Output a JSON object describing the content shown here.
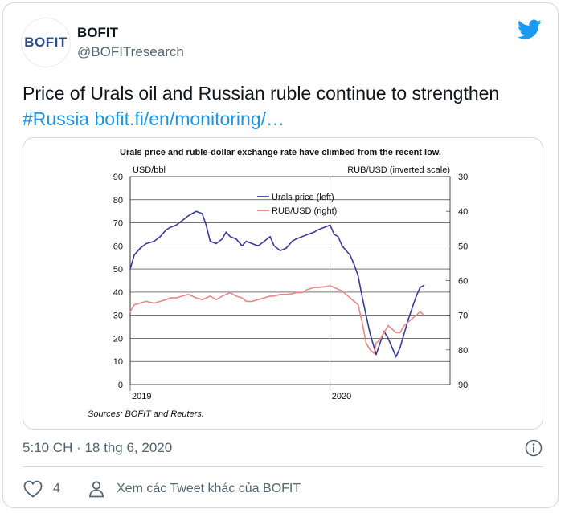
{
  "tweet": {
    "avatar_text": "BOFIT",
    "display_name": "BOFIT",
    "handle": "@BOFITresearch",
    "text_main": "Price of Urals oil and Russian ruble continue to strengthen",
    "hashtag": "#Russia",
    "link": "bofit.fi/en/monitoring/…",
    "timestamp": "5:10 CH · 18 thg 6, 2020",
    "like_count": "4",
    "more_tweets": "Xem các Tweet khác của BOFIT",
    "brand_icon": "twitter-bird-icon",
    "colors": {
      "link": "#1b95e0",
      "brand": "#1d9bf0",
      "muted": "#536471"
    }
  },
  "chart_data": {
    "type": "line",
    "title": "Urals price and ruble-dollar exchange rate have climbed from the recent low.",
    "left_axis_label": "USD/bbl",
    "right_axis_label": "RUB/USD (inverted scale)",
    "left_ticks": [
      "0",
      "10",
      "20",
      "30",
      "40",
      "50",
      "60",
      "70",
      "80",
      "90"
    ],
    "right_ticks": [
      "30",
      "40",
      "50",
      "60",
      "70",
      "80",
      "90"
    ],
    "x_tick_labels": [
      "2019",
      "2020"
    ],
    "left_ylim": [
      0,
      90
    ],
    "right_ylim_inverted": [
      90,
      30
    ],
    "xlim": [
      2019.0,
      2020.6
    ],
    "grid": true,
    "legend_position": "top-center",
    "source_note": "Sources: BOFIT and Reuters.",
    "series": [
      {
        "name": "Urals price (left)",
        "axis": "left",
        "color": "#3b3b9a",
        "x": [
          2019.0,
          2019.02,
          2019.05,
          2019.08,
          2019.12,
          2019.15,
          2019.18,
          2019.2,
          2019.23,
          2019.26,
          2019.29,
          2019.31,
          2019.33,
          2019.36,
          2019.38,
          2019.4,
          2019.43,
          2019.46,
          2019.48,
          2019.5,
          2019.53,
          2019.56,
          2019.58,
          2019.61,
          2019.64,
          2019.67,
          2019.7,
          2019.72,
          2019.75,
          2019.78,
          2019.81,
          2019.83,
          2019.86,
          2019.89,
          2019.92,
          2019.94,
          2019.97,
          2020.0,
          2020.02,
          2020.04,
          2020.06,
          2020.08,
          2020.1,
          2020.12,
          2020.14,
          2020.16,
          2020.18,
          2020.2,
          2020.22,
          2020.23,
          2020.25,
          2020.27,
          2020.29,
          2020.31,
          2020.33,
          2020.35,
          2020.37,
          2020.39,
          2020.41,
          2020.43,
          2020.45,
          2020.47
        ],
        "y": [
          50,
          56,
          59,
          61,
          62,
          64,
          67,
          68,
          69,
          71,
          73,
          74,
          75,
          74,
          69,
          62,
          61,
          63,
          66,
          64,
          63,
          60,
          62,
          61,
          60,
          62,
          64,
          60,
          58,
          59,
          62,
          63,
          64,
          65,
          66,
          67,
          68,
          69,
          65,
          64,
          60,
          58,
          56,
          52,
          47,
          38,
          30,
          22,
          16,
          13,
          18,
          23,
          20,
          16,
          12,
          16,
          22,
          28,
          33,
          38,
          42,
          43
        ]
      },
      {
        "name": "RUB/USD (right)",
        "axis": "right",
        "color": "#e8888a",
        "x": [
          2019.0,
          2019.02,
          2019.05,
          2019.08,
          2019.12,
          2019.15,
          2019.18,
          2019.2,
          2019.23,
          2019.26,
          2019.29,
          2019.31,
          2019.33,
          2019.36,
          2019.38,
          2019.4,
          2019.43,
          2019.46,
          2019.48,
          2019.5,
          2019.53,
          2019.56,
          2019.58,
          2019.61,
          2019.64,
          2019.67,
          2019.7,
          2019.72,
          2019.75,
          2019.78,
          2019.81,
          2019.83,
          2019.86,
          2019.89,
          2019.92,
          2019.94,
          2019.97,
          2020.0,
          2020.02,
          2020.04,
          2020.06,
          2020.08,
          2020.1,
          2020.12,
          2020.14,
          2020.16,
          2020.18,
          2020.2,
          2020.22,
          2020.23,
          2020.25,
          2020.27,
          2020.29,
          2020.31,
          2020.33,
          2020.35,
          2020.37,
          2020.39,
          2020.41,
          2020.43,
          2020.45,
          2020.47
        ],
        "y": [
          69,
          67,
          66.5,
          66,
          66.5,
          66,
          65.5,
          65,
          65,
          64.5,
          64,
          64.5,
          65,
          65.5,
          65,
          64.5,
          65.5,
          64.5,
          64,
          63.5,
          64.5,
          65,
          66,
          66,
          65.5,
          65,
          64.5,
          64.5,
          64,
          64,
          63.8,
          63.5,
          63.5,
          62.5,
          62,
          62,
          61.8,
          61.5,
          62,
          62.5,
          63,
          64,
          65,
          66,
          67,
          72,
          78,
          80,
          81,
          78,
          77,
          75,
          73,
          74,
          75,
          75,
          73,
          72,
          71,
          70,
          69,
          70
        ]
      }
    ]
  }
}
